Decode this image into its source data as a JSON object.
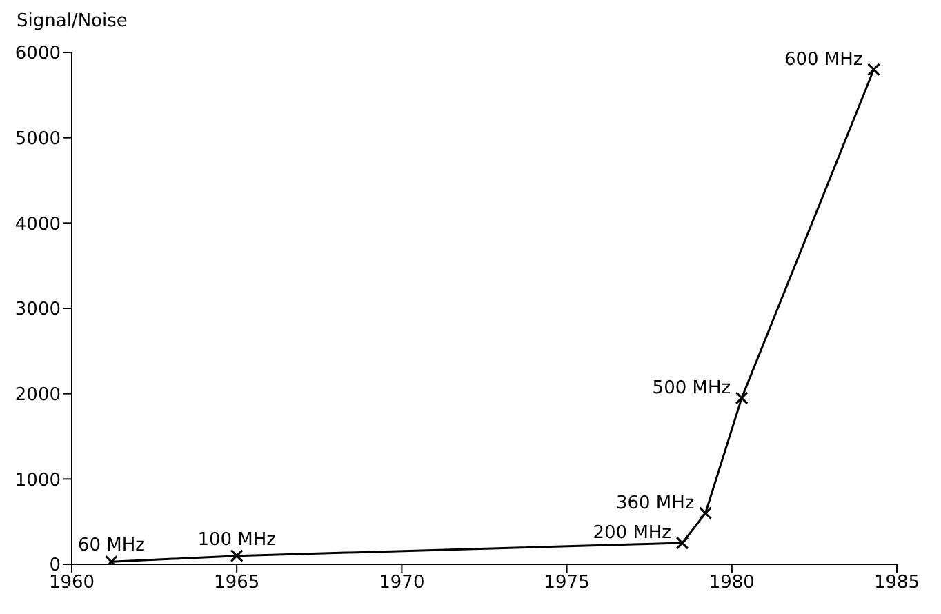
{
  "chart_data": {
    "type": "line",
    "ylabel": "Signal/Noise",
    "x": [
      1961.2,
      1965,
      1978.5,
      1979.2,
      1980.3,
      1984.3
    ],
    "series": [
      {
        "color": "#000000",
        "values": [
          30,
          100,
          250,
          600,
          1950,
          5800
        ]
      }
    ],
    "xlim": [
      1960,
      1985
    ],
    "xticks": [
      1960,
      1965,
      1970,
      1975,
      1980,
      1985
    ],
    "ylim": [
      0,
      6000
    ],
    "yticks": [
      0,
      1000,
      2000,
      3000,
      4000,
      5000,
      6000
    ],
    "grid": false,
    "legend": false,
    "marker": "cross",
    "line_style": "solid",
    "annotations": [
      {
        "text": "60 MHz",
        "x": 1961.2,
        "y": 30
      },
      {
        "text": "100 MHz",
        "x": 1965,
        "y": 100
      },
      {
        "text": "200 MHz",
        "x": 1978.5,
        "y": 250
      },
      {
        "text": "360 MHz",
        "x": 1979.2,
        "y": 600
      },
      {
        "text": "500 MHz",
        "x": 1980.3,
        "y": 1950
      },
      {
        "text": "600 MHz",
        "x": 1984.3,
        "y": 5800
      }
    ]
  }
}
